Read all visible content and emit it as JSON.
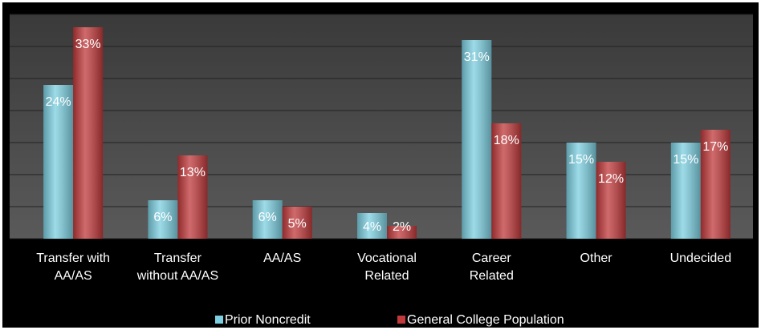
{
  "chart_data": {
    "type": "bar",
    "categories": [
      "Transfer with\nAA/AS",
      "Transfer\nwithout AA/AS",
      "AA/AS",
      "Vocational\nRelated",
      "Career\nRelated",
      "Other",
      "Undecided"
    ],
    "series": [
      {
        "name": "Prior Noncredit",
        "color": "#7ccfe0",
        "values": [
          24,
          6,
          6,
          4,
          31,
          15,
          15
        ],
        "value_labels": [
          "24%",
          "6%",
          "6%",
          "4%",
          "31%",
          "15%",
          "15%"
        ]
      },
      {
        "name": "General College Population",
        "color": "#c0393b",
        "values": [
          33,
          13,
          5,
          2,
          18,
          12,
          17
        ],
        "value_labels": [
          "33%",
          "13%",
          "5%",
          "2%",
          "18%",
          "12%",
          "17%"
        ]
      }
    ],
    "ylim": [
      0,
      35
    ],
    "yticks": [
      0,
      5,
      10,
      15,
      20,
      25,
      30,
      35
    ],
    "grid": true,
    "legend": "bottom"
  }
}
